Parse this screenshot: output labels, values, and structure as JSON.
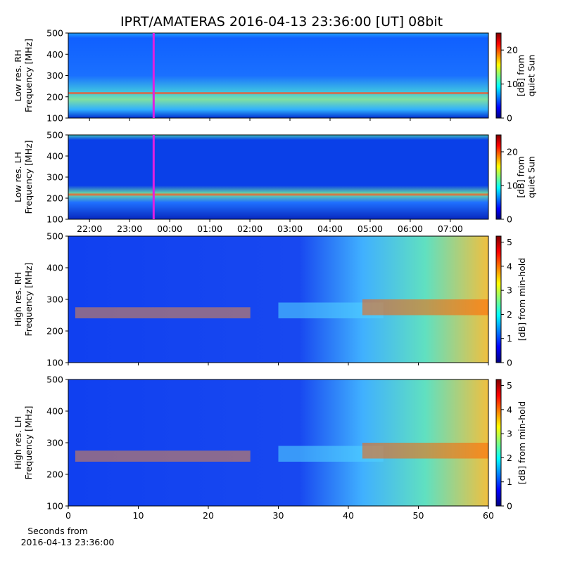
{
  "chart_data": [
    {
      "type": "heatmap",
      "title": "IPRT/AMATERAS 2016-04-13 23:36:00 [UT]   08bit",
      "ylabel": [
        "Low res. RH",
        "Frequency [MHz]"
      ],
      "ylim": [
        100,
        500
      ],
      "yticks": [
        100,
        200,
        300,
        400,
        500
      ],
      "xlim": [
        21.47,
        31.95
      ],
      "marker_x": 23.6,
      "marker_color": "#e020e0",
      "clim": [
        0,
        25
      ],
      "cticks": [
        0,
        10,
        20
      ],
      "clabel": [
        "[dB] from",
        "quiet Sun"
      ]
    },
    {
      "type": "heatmap",
      "ylabel": [
        "Low res. LH",
        "Frequency [MHz]"
      ],
      "ylim": [
        100,
        500
      ],
      "yticks": [
        100,
        200,
        300,
        400,
        500
      ],
      "xlim": [
        21.47,
        31.95
      ],
      "xticks": [
        {
          "value": 22,
          "label": "22:00"
        },
        {
          "value": 23,
          "label": "23:00"
        },
        {
          "value": 24,
          "label": "00:00"
        },
        {
          "value": 25,
          "label": "01:00"
        },
        {
          "value": 26,
          "label": "02:00"
        },
        {
          "value": 27,
          "label": "03:00"
        },
        {
          "value": 28,
          "label": "04:00"
        },
        {
          "value": 29,
          "label": "05:00"
        },
        {
          "value": 30,
          "label": "06:00"
        },
        {
          "value": 31,
          "label": "07:00"
        }
      ],
      "marker_x": 23.6,
      "marker_color": "#e020e0",
      "clim": [
        0,
        25
      ],
      "cticks": [
        0,
        10,
        20
      ],
      "clabel": [
        "[dB] from",
        "quiet Sun"
      ]
    },
    {
      "type": "heatmap",
      "ylabel": [
        "High res. RH",
        "Frequency [MHz]"
      ],
      "ylim": [
        100,
        500
      ],
      "yticks": [
        100,
        200,
        300,
        400,
        500
      ],
      "xlim": [
        0,
        60
      ],
      "clim": [
        0,
        5.25
      ],
      "cticks": [
        0,
        1,
        2,
        3,
        4,
        5
      ],
      "clabel": [
        "[dB] from min-hold"
      ]
    },
    {
      "type": "heatmap",
      "ylabel": [
        "High res. LH",
        "Frequency [MHz]"
      ],
      "ylim": [
        100,
        500
      ],
      "yticks": [
        100,
        200,
        300,
        400,
        500
      ],
      "xlim": [
        0,
        60
      ],
      "xticks": [
        0,
        10,
        20,
        30,
        40,
        50,
        60
      ],
      "xlabel": [
        "Seconds from",
        "2016-04-13 23:36:00"
      ],
      "clim": [
        0,
        5.25
      ],
      "cticks": [
        0,
        1,
        2,
        3,
        4,
        5
      ],
      "clabel": [
        "[dB] from min-hold"
      ]
    }
  ]
}
